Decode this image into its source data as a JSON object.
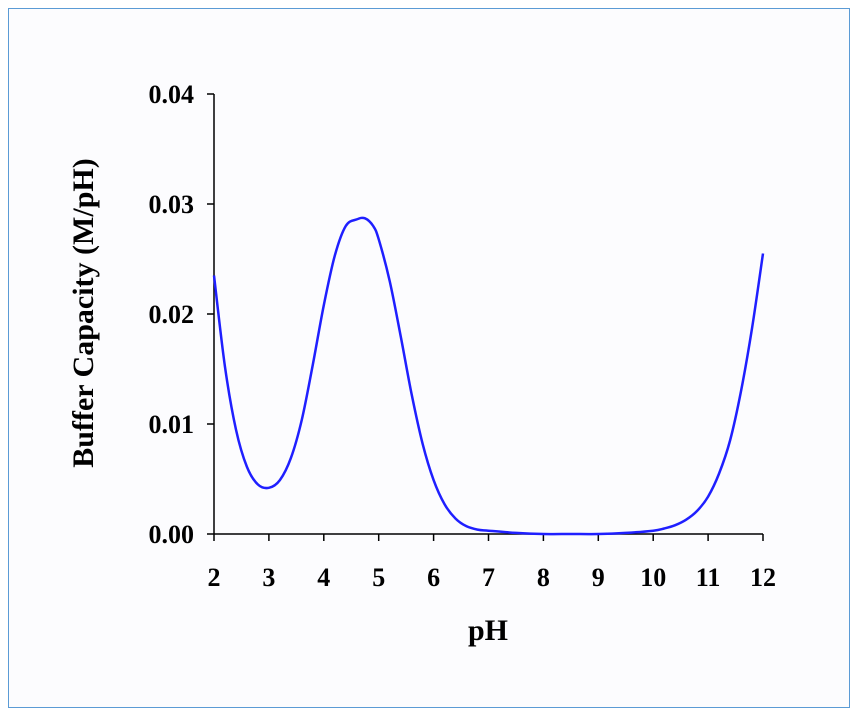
{
  "chart_data": {
    "type": "line",
    "title": "",
    "xlabel": "pH",
    "ylabel": "Buffer Capacity (M/pH)",
    "xlim": [
      2,
      12
    ],
    "ylim": [
      0,
      0.04
    ],
    "xticks": [
      "2",
      "3",
      "4",
      "5",
      "6",
      "7",
      "8",
      "9",
      "10",
      "11",
      "12"
    ],
    "yticks": [
      "0.00",
      "0.01",
      "0.02",
      "0.03",
      "0.04"
    ],
    "grid": false,
    "legend": "none",
    "series": [
      {
        "color": "#1f1fff",
        "x": [
          2.0,
          2.2,
          2.4,
          2.6,
          2.8,
          3.0,
          3.2,
          3.4,
          3.6,
          3.8,
          4.0,
          4.2,
          4.4,
          4.6,
          4.75,
          4.9,
          5.0,
          5.2,
          5.4,
          5.6,
          5.8,
          6.0,
          6.2,
          6.4,
          6.6,
          6.8,
          7.0,
          7.5,
          8.0,
          8.5,
          9.0,
          9.5,
          10.0,
          10.2,
          10.4,
          10.6,
          10.8,
          11.0,
          11.2,
          11.4,
          11.6,
          11.8,
          12.0
        ],
        "y": [
          0.0235,
          0.0152,
          0.0095,
          0.0061,
          0.0045,
          0.0042,
          0.0049,
          0.0069,
          0.0104,
          0.0154,
          0.0208,
          0.0253,
          0.028,
          0.0286,
          0.0287,
          0.028,
          0.0268,
          0.023,
          0.018,
          0.0127,
          0.0082,
          0.0049,
          0.0027,
          0.0014,
          0.0007,
          0.0004,
          0.0003,
          0.0001,
          0.0,
          0.0,
          0.0,
          0.0001,
          0.0003,
          0.0005,
          0.0008,
          0.0013,
          0.0021,
          0.0034,
          0.0055,
          0.0085,
          0.013,
          0.0187,
          0.0255
        ]
      }
    ]
  }
}
